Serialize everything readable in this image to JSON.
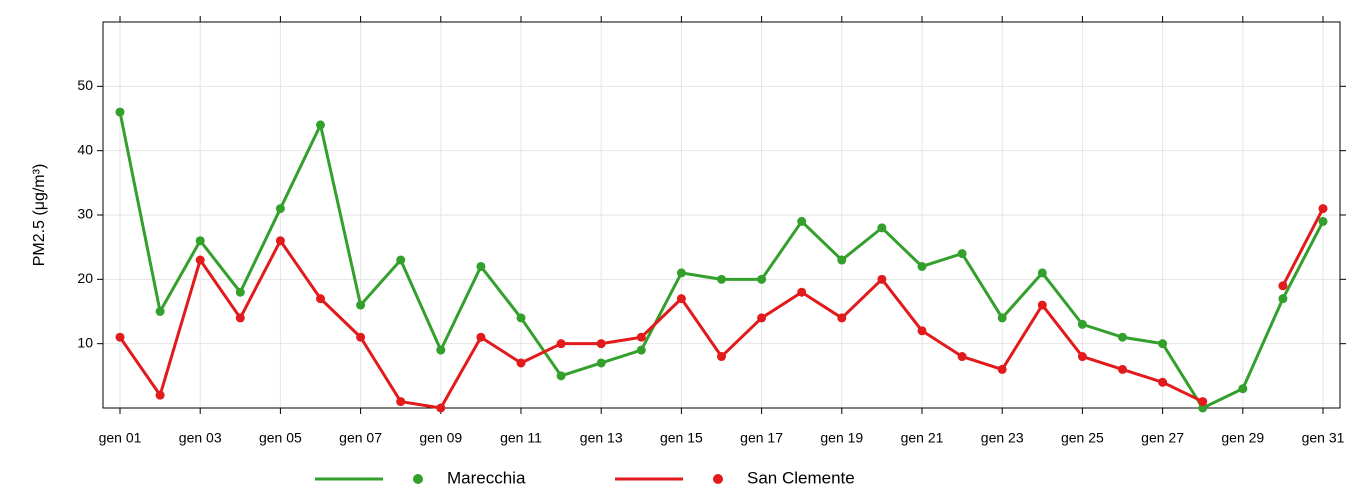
{
  "chart_data": {
    "type": "line",
    "y_label": "PM2.5 (μg/m³)",
    "categories": [
      "gen 01",
      null,
      "gen 03",
      null,
      "gen 05",
      null,
      "gen 07",
      null,
      "gen 09",
      null,
      "gen 11",
      null,
      "gen 13",
      null,
      "gen 15",
      null,
      "gen 17",
      null,
      "gen 19",
      null,
      "gen 21",
      null,
      "gen 23",
      null,
      "gen 25",
      null,
      "gen 27",
      null,
      "gen 29",
      null,
      "gen 31"
    ],
    "series": [
      {
        "name": "Marecchia",
        "color": "#33a02c",
        "values": [
          46,
          15,
          26,
          18,
          31,
          44,
          16,
          23,
          9,
          22,
          14,
          5,
          7,
          9,
          21,
          20,
          20,
          29,
          23,
          28,
          22,
          24,
          14,
          21,
          13,
          11,
          10,
          0,
          3,
          17,
          29
        ]
      },
      {
        "name": "San Clemente",
        "color": "#e31a1c",
        "values": [
          11,
          2,
          23,
          14,
          26,
          17,
          11,
          1,
          0,
          11,
          7,
          10,
          10,
          11,
          17,
          8,
          14,
          18,
          14,
          20,
          12,
          8,
          6,
          16,
          8,
          6,
          4,
          1,
          null,
          19,
          31
        ]
      }
    ],
    "ylim": [
      0,
      60
    ],
    "yticks": [
      10,
      20,
      30,
      40,
      50
    ],
    "grid": true,
    "legend": "bottom"
  }
}
